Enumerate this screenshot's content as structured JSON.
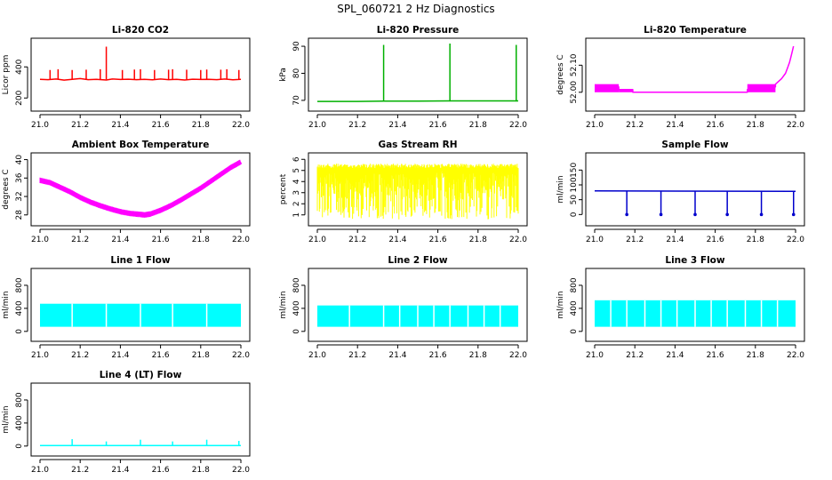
{
  "figure_title": "SPL_060721  2 Hz Diagnostics",
  "chart_data": [
    {
      "type": "line",
      "title": "Li-820 CO2",
      "ylabel": "Licor ppm",
      "color": "#ff0000",
      "xlim": [
        21.0,
        22.0
      ],
      "ylim": [
        150,
        550
      ],
      "xticks": [
        21.0,
        21.2,
        21.4,
        21.6,
        21.8,
        22.0
      ],
      "xticklabels": [
        "21.0",
        "21.2",
        "21.4",
        "21.6",
        "21.8",
        "22.0"
      ],
      "yticks": [
        200,
        400
      ],
      "yticklabels": [
        "200",
        "400"
      ],
      "series": [
        {
          "name": "CO2",
          "x": [
            21.0,
            21.04,
            21.08,
            21.12,
            21.16,
            21.2,
            21.24,
            21.28,
            21.33,
            21.36,
            21.4,
            21.44,
            21.48,
            21.52,
            21.56,
            21.6,
            21.64,
            21.68,
            21.72,
            21.76,
            21.8,
            21.84,
            21.88,
            21.92,
            21.96,
            22.0
          ],
          "y": [
            320,
            318,
            322,
            315,
            320,
            325,
            318,
            320,
            316,
            322,
            319,
            321,
            318,
            320,
            317,
            322,
            318,
            320,
            316,
            321,
            319,
            320,
            318,
            322,
            317,
            320
          ]
        }
      ],
      "spikes_x": [
        21.05,
        21.09,
        21.16,
        21.23,
        21.3,
        21.33,
        21.41,
        21.47,
        21.5,
        21.57,
        21.64,
        21.66,
        21.73,
        21.8,
        21.83,
        21.9,
        21.93,
        21.99
      ],
      "spikes_y": [
        380,
        385,
        380,
        382,
        385,
        530,
        380,
        383,
        385,
        380,
        382,
        385,
        382,
        380,
        383,
        382,
        385,
        380
      ]
    },
    {
      "type": "line",
      "title": "Li-820 Pressure",
      "ylabel": "kPa",
      "color": "#00b000",
      "xlim": [
        21.0,
        22.0
      ],
      "ylim": [
        68,
        91
      ],
      "xticks": [
        21.0,
        21.2,
        21.4,
        21.6,
        21.8,
        22.0
      ],
      "xticklabels": [
        "21.0",
        "21.2",
        "21.4",
        "21.6",
        "21.8",
        "22.0"
      ],
      "yticks": [
        70,
        80,
        90
      ],
      "yticklabels": [
        "70",
        "80",
        "90"
      ],
      "series": [
        {
          "name": "Pressure",
          "x": [
            21.0,
            21.2,
            21.33,
            21.5,
            21.66,
            21.8,
            21.99,
            22.0
          ],
          "y": [
            69.6,
            69.6,
            69.7,
            69.7,
            69.8,
            69.8,
            69.8,
            69.8
          ]
        }
      ],
      "spikes_x": [
        21.33,
        21.66,
        21.99
      ],
      "spikes_y": [
        90.5,
        91.0,
        90.5
      ]
    },
    {
      "type": "line",
      "title": "Li-820 Temperature",
      "ylabel": "degrees C",
      "color": "#ff00ff",
      "xlim": [
        21.0,
        22.0
      ],
      "ylim": [
        51.95,
        52.18
      ],
      "xticks": [
        21.0,
        21.2,
        21.4,
        21.6,
        21.8,
        22.0
      ],
      "xticklabels": [
        "21.0",
        "21.2",
        "21.4",
        "21.6",
        "21.8",
        "22.0"
      ],
      "yticks": [
        52.0,
        52.1
      ],
      "yticklabels": [
        "52.00",
        "52.10"
      ],
      "series": [
        {
          "name": "Temperature",
          "x": [
            21.0,
            21.12,
            21.12,
            21.19,
            21.19,
            21.76,
            21.76,
            21.9,
            21.9,
            21.93,
            21.95,
            21.96,
            21.97,
            21.98,
            21.99
          ],
          "y": [
            52.02,
            52.02,
            52.01,
            52.01,
            52.0,
            52.0,
            52.01,
            52.02,
            52.03,
            52.05,
            52.07,
            52.09,
            52.11,
            52.14,
            52.17
          ]
        }
      ],
      "band_low": [
        {
          "x0": 21.0,
          "x1": 21.12,
          "lo": 52.0,
          "hi": 52.03
        },
        {
          "x0": 21.12,
          "x1": 21.19,
          "lo": 52.0,
          "hi": 52.01
        },
        {
          "x0": 21.76,
          "x1": 21.9,
          "lo": 52.0,
          "hi": 52.03
        }
      ]
    },
    {
      "type": "line",
      "title": "Ambient Box Temperature",
      "ylabel": "degrees C",
      "color": "#ff00ff",
      "xlim": [
        21.0,
        22.0
      ],
      "ylim": [
        26.8,
        40.3
      ],
      "xticks": [
        21.0,
        21.2,
        21.4,
        21.6,
        21.8,
        22.0
      ],
      "xticklabels": [
        "21.0",
        "21.2",
        "21.4",
        "21.6",
        "21.8",
        "22.0"
      ],
      "yticks": [
        28,
        32,
        36,
        40
      ],
      "yticklabels": [
        "28",
        "32",
        "36",
        "40"
      ],
      "series": [
        {
          "name": "Ambient",
          "x": [
            21.0,
            21.05,
            21.1,
            21.15,
            21.2,
            21.25,
            21.3,
            21.35,
            21.4,
            21.45,
            21.5,
            21.52,
            21.55,
            21.6,
            21.65,
            21.7,
            21.75,
            21.8,
            21.85,
            21.9,
            21.95,
            22.0
          ],
          "y": [
            35.5,
            35.0,
            34.0,
            33.0,
            31.8,
            30.8,
            30.0,
            29.3,
            28.7,
            28.3,
            28.1,
            28.0,
            28.2,
            29.0,
            30.0,
            31.2,
            32.5,
            33.8,
            35.3,
            36.8,
            38.3,
            39.5
          ]
        }
      ],
      "noise": 0.6
    },
    {
      "type": "line",
      "title": "Gas Stream RH",
      "ylabel": "percent",
      "color": "#ffff00",
      "xlim": [
        21.0,
        22.0
      ],
      "ylim": [
        0.5,
        6.1
      ],
      "xticks": [
        21.0,
        21.2,
        21.4,
        21.6,
        21.8,
        22.0
      ],
      "xticklabels": [
        "21.0",
        "21.2",
        "21.4",
        "21.6",
        "21.8",
        "22.0"
      ],
      "yticks": [
        1,
        2,
        3,
        4,
        5,
        6
      ],
      "yticklabels": [
        "1",
        "2",
        "3",
        "4",
        "5",
        "6"
      ],
      "series": [
        {
          "name": "RH",
          "x": [
            21.0,
            22.0
          ],
          "y_top": [
            5.6,
            5.7
          ],
          "y_bottom": [
            0.6,
            0.6
          ]
        }
      ]
    },
    {
      "type": "line",
      "title": "Sample Flow",
      "ylabel": "ml/min",
      "color": "#0000cc",
      "xlim": [
        21.0,
        22.0
      ],
      "ylim": [
        -20,
        190
      ],
      "xticks": [
        21.0,
        21.2,
        21.4,
        21.6,
        21.8,
        22.0
      ],
      "xticklabels": [
        "21.0",
        "21.2",
        "21.4",
        "21.6",
        "21.8",
        "22.0"
      ],
      "yticks": [
        0,
        50,
        100,
        150
      ],
      "yticklabels": [
        "0",
        "50",
        "100",
        "150"
      ],
      "series": [
        {
          "name": "Sample",
          "x": [
            21.0,
            22.0
          ],
          "y": [
            80,
            78
          ]
        }
      ],
      "dips_x": [
        21.16,
        21.33,
        21.5,
        21.66,
        21.83,
        21.99
      ],
      "dips_y": [
        0,
        0,
        0,
        0,
        0,
        0
      ]
    },
    {
      "type": "area",
      "title": "Line 1 Flow",
      "ylabel": "ml/min",
      "color": "#00ffff",
      "xlim": [
        21.0,
        22.0
      ],
      "ylim": [
        -80,
        1000
      ],
      "xticks": [
        21.0,
        21.2,
        21.4,
        21.6,
        21.8,
        22.0
      ],
      "xticklabels": [
        "21.0",
        "21.2",
        "21.4",
        "21.6",
        "21.8",
        "22.0"
      ],
      "yticks": [
        0,
        400,
        800
      ],
      "yticklabels": [
        "0",
        "400",
        "800"
      ],
      "series": [
        {
          "name": "Line 1",
          "x": [
            21.0,
            22.0
          ],
          "y_top": [
            480,
            470
          ],
          "y_bottom": [
            80,
            80
          ]
        }
      ],
      "gaps_x": [
        21.16,
        21.33,
        21.5,
        21.66,
        21.83
      ]
    },
    {
      "type": "area",
      "title": "Line 2 Flow",
      "ylabel": "ml/min",
      "color": "#00ffff",
      "xlim": [
        21.0,
        22.0
      ],
      "ylim": [
        -80,
        1000
      ],
      "xticks": [
        21.0,
        21.2,
        21.4,
        21.6,
        21.8,
        22.0
      ],
      "xticklabels": [
        "21.0",
        "21.2",
        "21.4",
        "21.6",
        "21.8",
        "22.0"
      ],
      "yticks": [
        0,
        400,
        800
      ],
      "yticklabels": [
        "0",
        "400",
        "800"
      ],
      "series": [
        {
          "name": "Line 2",
          "x": [
            21.0,
            22.0
          ],
          "y_top": [
            450,
            440
          ],
          "y_bottom": [
            80,
            80
          ]
        }
      ],
      "gaps_x": [
        21.16,
        21.33,
        21.41,
        21.5,
        21.58,
        21.66,
        21.75,
        21.83,
        21.91
      ]
    },
    {
      "type": "area",
      "title": "Line 3 Flow",
      "ylabel": "ml/min",
      "color": "#00ffff",
      "xlim": [
        21.0,
        22.0
      ],
      "ylim": [
        -80,
        1000
      ],
      "xticks": [
        21.0,
        21.2,
        21.4,
        21.6,
        21.8,
        22.0
      ],
      "xticklabels": [
        "21.0",
        "21.2",
        "21.4",
        "21.6",
        "21.8",
        "22.0"
      ],
      "yticks": [
        0,
        400,
        800
      ],
      "yticklabels": [
        "0",
        "400",
        "800"
      ],
      "series": [
        {
          "name": "Line 3",
          "x": [
            21.0,
            22.0
          ],
          "y_top": [
            540,
            530
          ],
          "y_bottom": [
            80,
            80
          ]
        }
      ],
      "gaps_x": [
        21.08,
        21.16,
        21.25,
        21.33,
        21.41,
        21.5,
        21.58,
        21.66,
        21.75,
        21.83,
        21.91
      ]
    },
    {
      "type": "line",
      "title": "Line 4 (LT) Flow",
      "ylabel": "ml/min",
      "color": "#00ffff",
      "xlim": [
        21.0,
        22.0
      ],
      "ylim": [
        -80,
        1000
      ],
      "xticks": [
        21.0,
        21.2,
        21.4,
        21.6,
        21.8,
        22.0
      ],
      "xticklabels": [
        "21.0",
        "21.2",
        "21.4",
        "21.6",
        "21.8",
        "22.0"
      ],
      "yticks": [
        0,
        400,
        800
      ],
      "yticklabels": [
        "0",
        "400",
        "800"
      ],
      "series": [
        {
          "name": "Line 4",
          "x": [
            21.0,
            22.0
          ],
          "y": [
            10,
            10
          ]
        }
      ],
      "spikes_x": [
        21.16,
        21.33,
        21.5,
        21.66,
        21.83,
        21.99
      ],
      "spikes_y": [
        120,
        80,
        110,
        80,
        110,
        90
      ]
    }
  ]
}
